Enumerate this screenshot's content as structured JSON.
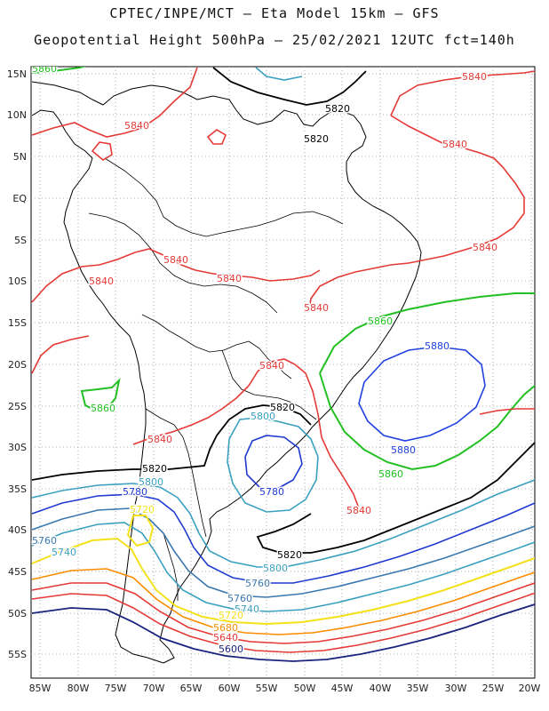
{
  "header": {
    "line1": "CPTEC/INPE/MCT –  Eta Model 15km – GFS",
    "line2": "Geopotential Height 500hPa – 25/02/2021 12UTC fct=140h"
  },
  "axes": {
    "lat_labels": [
      "15N",
      "10N",
      "5N",
      "EQ",
      "5S",
      "10S",
      "15S",
      "20S",
      "25S",
      "30S",
      "35S",
      "40S",
      "45S",
      "50S",
      "55S"
    ],
    "lon_labels": [
      "85W",
      "80W",
      "75W",
      "70W",
      "65W",
      "60W",
      "55W",
      "50W",
      "45W",
      "40W",
      "35W",
      "30W",
      "25W",
      "20W"
    ],
    "grid": "dotted"
  },
  "contour_colors": {
    "5600": "#1a237e",
    "5640": "#e53935",
    "5680": "#fb8c00",
    "5720": "#f4e11a",
    "5740": "#3aa0c0",
    "5760": "#3a78b0",
    "5780": "#1e3ad0",
    "5800": "#3aa0c0",
    "5820": "#000000",
    "5840": "#e53935",
    "5860": "#22c022",
    "5880": "#2040e0"
  },
  "contour_labels": [
    {
      "value": "5860",
      "color": "#22c022"
    },
    {
      "value": "5840",
      "color": "#e53935"
    },
    {
      "value": "5820",
      "color": "#000000"
    },
    {
      "value": "5840",
      "color": "#e53935"
    },
    {
      "value": "5820",
      "color": "#000000"
    },
    {
      "value": "5840",
      "color": "#e53935"
    },
    {
      "value": "5840",
      "color": "#e53935"
    },
    {
      "value": "5840",
      "color": "#e53935"
    },
    {
      "value": "5840",
      "color": "#e53935"
    },
    {
      "value": "5840",
      "color": "#e53935"
    },
    {
      "value": "5840",
      "color": "#e53935"
    },
    {
      "value": "5860",
      "color": "#22c022"
    },
    {
      "value": "5880",
      "color": "#2040e0"
    },
    {
      "value": "5840",
      "color": "#e53935"
    },
    {
      "value": "5860",
      "color": "#22c022"
    },
    {
      "value": "5820",
      "color": "#000000"
    },
    {
      "value": "5800",
      "color": "#3aa0c0"
    },
    {
      "value": "5840",
      "color": "#e53935"
    },
    {
      "value": "5880",
      "color": "#2040e0"
    },
    {
      "value": "5860",
      "color": "#22c022"
    },
    {
      "value": "5820",
      "color": "#000000"
    },
    {
      "value": "5800",
      "color": "#3aa0c0"
    },
    {
      "value": "5780",
      "color": "#1e3ad0"
    },
    {
      "value": "5780",
      "color": "#1e3ad0"
    },
    {
      "value": "5840",
      "color": "#e53935"
    },
    {
      "value": "5720",
      "color": "#f4e11a"
    },
    {
      "value": "5760",
      "color": "#3a78b0"
    },
    {
      "value": "5740",
      "color": "#3aa0c0"
    },
    {
      "value": "5820",
      "color": "#000000"
    },
    {
      "value": "5800",
      "color": "#3aa0c0"
    },
    {
      "value": "5760",
      "color": "#3a78b0"
    },
    {
      "value": "5760",
      "color": "#3a78b0"
    },
    {
      "value": "5740",
      "color": "#3aa0c0"
    },
    {
      "value": "5720",
      "color": "#f4e11a"
    },
    {
      "value": "5680",
      "color": "#fb8c00"
    },
    {
      "value": "5640",
      "color": "#e53935"
    },
    {
      "value": "5600",
      "color": "#1a237e"
    }
  ]
}
